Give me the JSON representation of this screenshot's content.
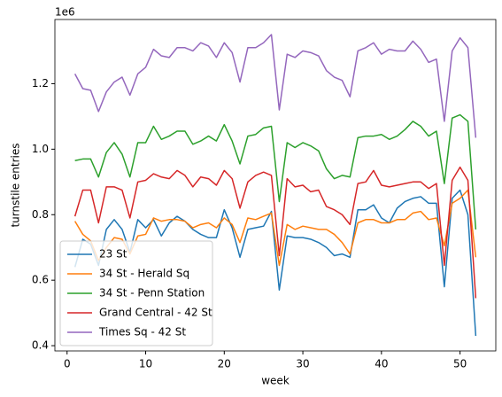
{
  "chart_data": {
    "type": "line",
    "xlabel": "week",
    "ylabel": "turnstile entries",
    "y_offset_label": "1e6",
    "x": [
      1,
      2,
      3,
      4,
      5,
      6,
      7,
      8,
      9,
      10,
      11,
      12,
      13,
      14,
      15,
      16,
      17,
      18,
      19,
      20,
      21,
      22,
      23,
      24,
      25,
      26,
      27,
      28,
      29,
      30,
      31,
      32,
      33,
      34,
      35,
      36,
      37,
      38,
      39,
      40,
      41,
      42,
      43,
      44,
      45,
      46,
      47,
      48,
      49,
      50,
      51,
      52
    ],
    "series": [
      {
        "name": "23 St",
        "color": "#1f77b4",
        "values": [
          0.64,
          0.725,
          0.71,
          0.645,
          0.755,
          0.785,
          0.755,
          0.685,
          0.785,
          0.76,
          0.785,
          0.735,
          0.775,
          0.795,
          0.78,
          0.755,
          0.74,
          0.73,
          0.73,
          0.815,
          0.76,
          0.67,
          0.755,
          0.76,
          0.765,
          0.81,
          0.57,
          0.735,
          0.73,
          0.73,
          0.725,
          0.715,
          0.7,
          0.675,
          0.68,
          0.67,
          0.815,
          0.815,
          0.83,
          0.79,
          0.775,
          0.82,
          0.84,
          0.85,
          0.855,
          0.835,
          0.835,
          0.58,
          0.85,
          0.875,
          0.8,
          0.43
        ]
      },
      {
        "name": "34 St - Herald Sq",
        "color": "#ff7f0e",
        "values": [
          0.78,
          0.74,
          0.72,
          0.66,
          0.7,
          0.73,
          0.725,
          0.68,
          0.735,
          0.74,
          0.79,
          0.78,
          0.785,
          0.785,
          0.78,
          0.76,
          0.77,
          0.775,
          0.76,
          0.79,
          0.77,
          0.715,
          0.79,
          0.785,
          0.795,
          0.805,
          0.645,
          0.77,
          0.755,
          0.765,
          0.76,
          0.755,
          0.755,
          0.74,
          0.715,
          0.68,
          0.775,
          0.785,
          0.785,
          0.775,
          0.775,
          0.785,
          0.785,
          0.805,
          0.81,
          0.785,
          0.79,
          0.705,
          0.835,
          0.85,
          0.875,
          0.67
        ]
      },
      {
        "name": "34 St - Penn Station",
        "color": "#2ca02c",
        "values": [
          0.965,
          0.97,
          0.97,
          0.915,
          0.99,
          1.02,
          0.985,
          0.915,
          1.02,
          1.02,
          1.07,
          1.03,
          1.04,
          1.055,
          1.055,
          1.015,
          1.025,
          1.04,
          1.025,
          1.075,
          1.025,
          0.955,
          1.04,
          1.045,
          1.065,
          1.07,
          0.84,
          1.02,
          1.005,
          1.02,
          1.01,
          0.995,
          0.94,
          0.91,
          0.92,
          0.915,
          1.035,
          1.04,
          1.04,
          1.045,
          1.03,
          1.04,
          1.06,
          1.085,
          1.07,
          1.04,
          1.055,
          0.895,
          1.095,
          1.105,
          1.085,
          0.755
        ]
      },
      {
        "name": "Grand Central - 42 St",
        "color": "#d62728",
        "values": [
          0.795,
          0.875,
          0.875,
          0.775,
          0.885,
          0.885,
          0.875,
          0.79,
          0.9,
          0.905,
          0.925,
          0.915,
          0.91,
          0.935,
          0.92,
          0.885,
          0.915,
          0.91,
          0.89,
          0.935,
          0.91,
          0.82,
          0.9,
          0.92,
          0.93,
          0.92,
          0.675,
          0.91,
          0.885,
          0.89,
          0.87,
          0.875,
          0.825,
          0.815,
          0.8,
          0.77,
          0.895,
          0.9,
          0.935,
          0.89,
          0.885,
          0.89,
          0.895,
          0.9,
          0.9,
          0.88,
          0.895,
          0.645,
          0.905,
          0.945,
          0.905,
          0.545
        ]
      },
      {
        "name": "Times Sq - 42 St",
        "color": "#9467bd",
        "values": [
          1.23,
          1.185,
          1.18,
          1.115,
          1.175,
          1.205,
          1.22,
          1.165,
          1.23,
          1.25,
          1.305,
          1.285,
          1.28,
          1.31,
          1.31,
          1.3,
          1.325,
          1.315,
          1.28,
          1.325,
          1.295,
          1.205,
          1.31,
          1.31,
          1.325,
          1.35,
          1.12,
          1.29,
          1.28,
          1.3,
          1.295,
          1.285,
          1.24,
          1.22,
          1.21,
          1.16,
          1.3,
          1.31,
          1.325,
          1.29,
          1.305,
          1.3,
          1.3,
          1.33,
          1.305,
          1.265,
          1.275,
          1.085,
          1.3,
          1.34,
          1.31,
          1.035
        ]
      }
    ],
    "xlim": [
      -1.55,
      54.55
    ],
    "xticks": [
      0,
      10,
      20,
      30,
      40,
      50
    ],
    "ylim": [
      0.384,
      1.396
    ],
    "yticks": [
      0.4,
      0.6,
      0.8,
      {
        "value": 1,
        "label": "1.0"
      },
      1.2
    ],
    "legend": "lower left"
  }
}
